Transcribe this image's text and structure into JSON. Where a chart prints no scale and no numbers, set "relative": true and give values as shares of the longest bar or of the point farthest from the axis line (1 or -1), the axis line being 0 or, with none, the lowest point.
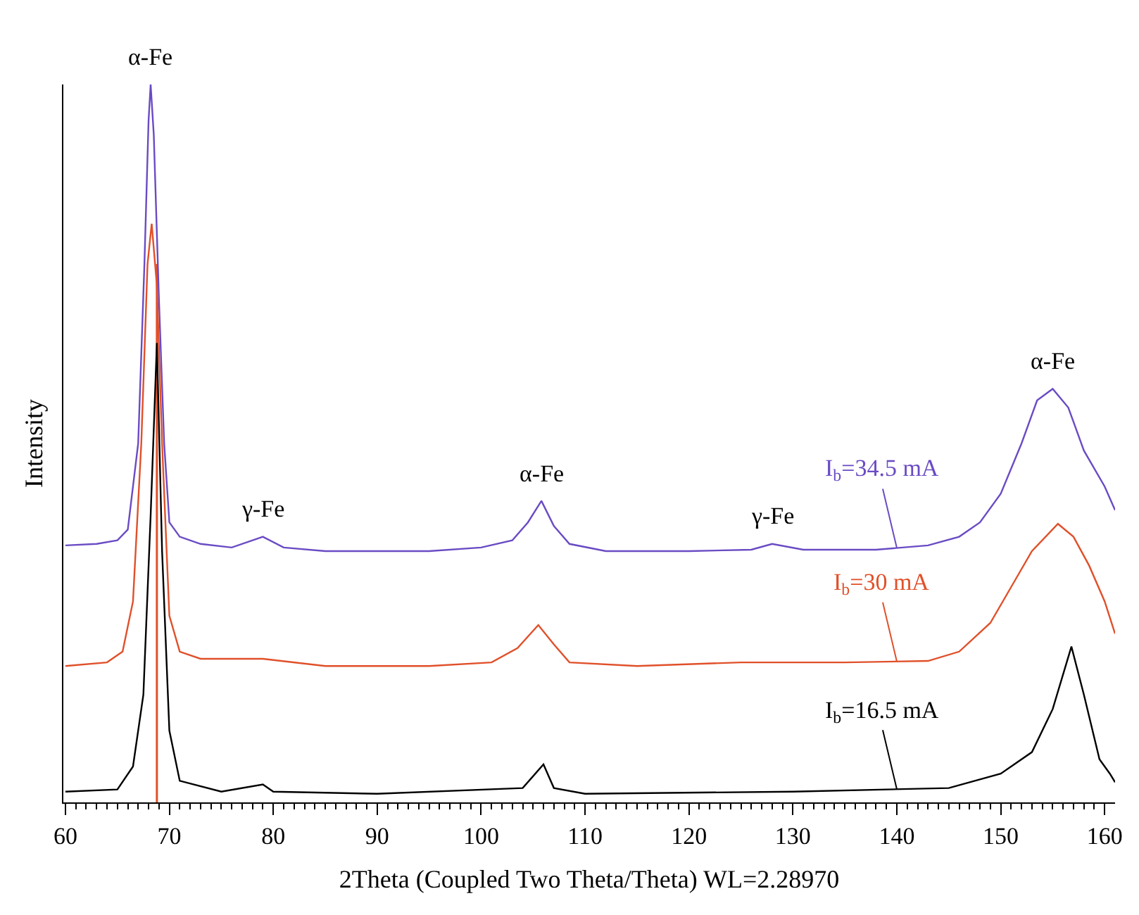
{
  "chart_data": {
    "type": "line",
    "relative": true,
    "xlabel": "2Theta (Coupled Two Theta/Theta) WL=2.28970",
    "ylabel": "Intensity",
    "xlim": [
      59.8,
      161
    ],
    "xticks": [
      60,
      {
        "value": 61,
        "label": null
      },
      {
        "value": 62,
        "label": null
      },
      {
        "value": 63,
        "label": null
      },
      {
        "value": 64,
        "label": null
      },
      {
        "value": 65,
        "label": null
      },
      {
        "value": 66,
        "label": null
      },
      {
        "value": 67,
        "label": null
      },
      {
        "value": 68,
        "label": null
      },
      {
        "value": 69,
        "label": null
      },
      70,
      {
        "value": 71,
        "label": null
      },
      {
        "value": 72,
        "label": null
      },
      {
        "value": 73,
        "label": null
      },
      {
        "value": 74,
        "label": null
      },
      {
        "value": 75,
        "label": null
      },
      {
        "value": 76,
        "label": null
      },
      {
        "value": 77,
        "label": null
      },
      {
        "value": 78,
        "label": null
      },
      {
        "value": 79,
        "label": null
      },
      80,
      {
        "value": 81,
        "label": null
      },
      {
        "value": 82,
        "label": null
      },
      {
        "value": 83,
        "label": null
      },
      {
        "value": 84,
        "label": null
      },
      {
        "value": 85,
        "label": null
      },
      {
        "value": 86,
        "label": null
      },
      {
        "value": 87,
        "label": null
      },
      {
        "value": 88,
        "label": null
      },
      {
        "value": 89,
        "label": null
      },
      90,
      {
        "value": 91,
        "label": null
      },
      {
        "value": 92,
        "label": null
      },
      {
        "value": 93,
        "label": null
      },
      {
        "value": 94,
        "label": null
      },
      {
        "value": 95,
        "label": null
      },
      {
        "value": 96,
        "label": null
      },
      {
        "value": 97,
        "label": null
      },
      {
        "value": 98,
        "label": null
      },
      {
        "value": 99,
        "label": null
      },
      100,
      {
        "value": 101,
        "label": null
      },
      {
        "value": 102,
        "label": null
      },
      {
        "value": 103,
        "label": null
      },
      {
        "value": 104,
        "label": null
      },
      {
        "value": 105,
        "label": null
      },
      {
        "value": 106,
        "label": null
      },
      {
        "value": 107,
        "label": null
      },
      {
        "value": 108,
        "label": null
      },
      {
        "value": 109,
        "label": null
      },
      110,
      {
        "value": 111,
        "label": null
      },
      {
        "value": 112,
        "label": null
      },
      {
        "value": 113,
        "label": null
      },
      {
        "value": 114,
        "label": null
      },
      {
        "value": 115,
        "label": null
      },
      {
        "value": 116,
        "label": null
      },
      {
        "value": 117,
        "label": null
      },
      {
        "value": 118,
        "label": null
      },
      {
        "value": 119,
        "label": null
      },
      120,
      {
        "value": 121,
        "label": null
      },
      {
        "value": 122,
        "label": null
      },
      {
        "value": 123,
        "label": null
      },
      {
        "value": 124,
        "label": null
      },
      {
        "value": 125,
        "label": null
      },
      {
        "value": 126,
        "label": null
      },
      {
        "value": 127,
        "label": null
      },
      {
        "value": 128,
        "label": null
      },
      {
        "value": 129,
        "label": null
      },
      130,
      {
        "value": 131,
        "label": null
      },
      {
        "value": 132,
        "label": null
      },
      {
        "value": 133,
        "label": null
      },
      {
        "value": 134,
        "label": null
      },
      {
        "value": 135,
        "label": null
      },
      {
        "value": 136,
        "label": null
      },
      {
        "value": 137,
        "label": null
      },
      {
        "value": 138,
        "label": null
      },
      {
        "value": 139,
        "label": null
      },
      140,
      {
        "value": 141,
        "label": null
      },
      {
        "value": 142,
        "label": null
      },
      {
        "value": 143,
        "label": null
      },
      {
        "value": 144,
        "label": null
      },
      {
        "value": 145,
        "label": null
      },
      {
        "value": 146,
        "label": null
      },
      {
        "value": 147,
        "label": null
      },
      {
        "value": 148,
        "label": null
      },
      {
        "value": 149,
        "label": null
      },
      150,
      {
        "value": 151,
        "label": null
      },
      {
        "value": 152,
        "label": null
      },
      {
        "value": 153,
        "label": null
      },
      {
        "value": 154,
        "label": null
      },
      {
        "value": 155,
        "label": null
      },
      {
        "value": 156,
        "label": null
      },
      {
        "value": 157,
        "label": null
      },
      {
        "value": 158,
        "label": null
      },
      {
        "value": 159,
        "label": null
      },
      160
    ],
    "legend": false,
    "tick_labels": "x",
    "marker": "none",
    "line_style": "solid",
    "series": [
      {
        "name": "I$_{b}$=34.5 mA",
        "color": "#6a4bc4",
        "x": [
          60,
          63,
          65,
          66,
          67,
          67.6,
          68.0,
          68.2,
          68.5,
          69,
          69.5,
          70,
          71,
          73,
          76,
          79,
          81,
          85,
          90,
          95,
          100,
          103,
          104.5,
          105.8,
          107,
          108.5,
          112,
          120,
          126,
          128,
          131,
          138,
          143,
          146,
          148,
          150,
          152,
          153.5,
          155,
          156.5,
          158,
          160,
          161
        ],
        "values": [
          0.358,
          0.36,
          0.365,
          0.38,
          0.5,
          0.75,
          0.95,
          1.0,
          0.93,
          0.7,
          0.5,
          0.39,
          0.37,
          0.36,
          0.355,
          0.37,
          0.355,
          0.35,
          0.35,
          0.35,
          0.355,
          0.365,
          0.39,
          0.42,
          0.385,
          0.36,
          0.35,
          0.35,
          0.352,
          0.36,
          0.352,
          0.352,
          0.358,
          0.37,
          0.39,
          0.43,
          0.5,
          0.56,
          0.576,
          0.55,
          0.49,
          0.44,
          0.407
        ]
      },
      {
        "name": "I$_{b}$=30 mA",
        "color": "#e0502a",
        "x": [
          60,
          64,
          65.5,
          66.5,
          67.3,
          67.9,
          68.3,
          68.8,
          69.3,
          70,
          71,
          73,
          79,
          85,
          95,
          101,
          103.5,
          105.5,
          107,
          108.5,
          115,
          125,
          135,
          143,
          146,
          149,
          151,
          153,
          155.5,
          157,
          158.5,
          160,
          161
        ],
        "values": [
          0.19,
          0.195,
          0.21,
          0.28,
          0.5,
          0.75,
          0.806,
          0.72,
          0.5,
          0.26,
          0.21,
          0.2,
          0.2,
          0.19,
          0.19,
          0.195,
          0.215,
          0.247,
          0.22,
          0.195,
          0.19,
          0.195,
          0.195,
          0.197,
          0.21,
          0.25,
          0.3,
          0.35,
          0.388,
          0.37,
          0.33,
          0.28,
          0.235
        ]
      },
      {
        "name": "I$_{b}$=16.5 mA",
        "color": "#000000",
        "x": [
          60,
          65,
          66.5,
          67.5,
          68.2,
          68.8,
          69.3,
          70,
          71,
          75,
          79,
          80,
          90,
          104,
          106,
          107,
          110,
          130,
          145,
          150,
          153,
          155,
          156.8,
          158,
          159.5,
          160.5,
          161
        ],
        "values": [
          0.015,
          0.018,
          0.05,
          0.15,
          0.4,
          0.64,
          0.35,
          0.1,
          0.03,
          0.015,
          0.025,
          0.015,
          0.012,
          0.02,
          0.053,
          0.02,
          0.012,
          0.015,
          0.02,
          0.04,
          0.07,
          0.13,
          0.217,
          0.15,
          0.06,
          0.04,
          0.028
        ]
      }
    ],
    "ref_lines": [
      {
        "axis": "x",
        "value": 68.8,
        "color": "#e0502a"
      }
    ],
    "annotations": [
      {
        "text": "α-Fe",
        "x": 68.2,
        "y": 1.0
      },
      {
        "text": "γ-Fe",
        "x": 79,
        "y": 0.37
      },
      {
        "text": "α-Fe",
        "x": 105.8,
        "y": 0.42
      },
      {
        "text": "γ-Fe",
        "x": 128,
        "y": 0.36
      },
      {
        "text": "α-Fe",
        "x": 155,
        "y": 0.576
      }
    ]
  }
}
